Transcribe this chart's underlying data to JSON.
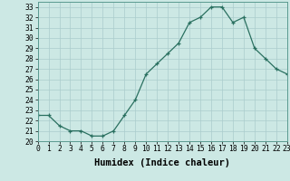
{
  "x": [
    0,
    1,
    2,
    3,
    4,
    5,
    6,
    7,
    8,
    9,
    10,
    11,
    12,
    13,
    14,
    15,
    16,
    17,
    18,
    19,
    20,
    21,
    22,
    23
  ],
  "y": [
    22.5,
    22.5,
    21.5,
    21.0,
    21.0,
    20.5,
    20.5,
    21.0,
    22.5,
    24.0,
    26.5,
    27.5,
    28.5,
    29.5,
    31.5,
    32.0,
    33.0,
    33.0,
    31.5,
    32.0,
    29.0,
    28.0,
    27.0,
    26.5
  ],
  "xlabel": "Humidex (Indice chaleur)",
  "ylim": [
    20,
    33.5
  ],
  "xlim": [
    0,
    23
  ],
  "yticks": [
    20,
    21,
    22,
    23,
    24,
    25,
    26,
    27,
    28,
    29,
    30,
    31,
    32,
    33
  ],
  "xticks": [
    0,
    1,
    2,
    3,
    4,
    5,
    6,
    7,
    8,
    9,
    10,
    11,
    12,
    13,
    14,
    15,
    16,
    17,
    18,
    19,
    20,
    21,
    22,
    23
  ],
  "line_color": "#2a7060",
  "marker_color": "#2a7060",
  "bg_color": "#cce8e4",
  "grid_color": "#aacccc",
  "tick_fontsize": 5.8,
  "xlabel_fontsize": 7.5
}
